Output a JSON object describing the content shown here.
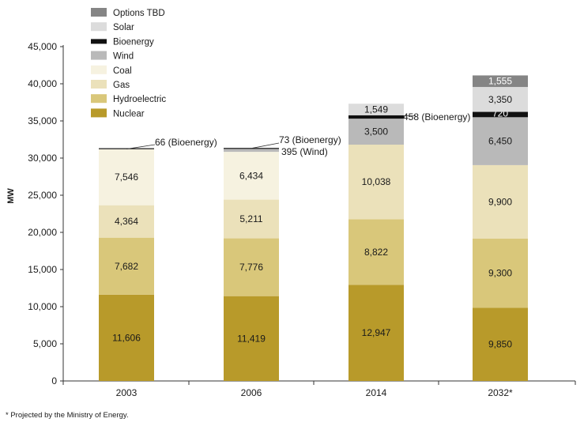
{
  "chart_data": {
    "type": "bar",
    "stacked": true,
    "categories": [
      "2003",
      "2006",
      "2014",
      "2032*"
    ],
    "ylabel": "MW",
    "ylim": [
      0,
      45000
    ],
    "yticks": [
      0,
      5000,
      10000,
      15000,
      20000,
      25000,
      30000,
      35000,
      40000,
      45000
    ],
    "ytick_labels": [
      "0",
      "5,000",
      "10,000",
      "15,000",
      "20,000",
      "25,000",
      "30,000",
      "35,000",
      "40,000",
      "45,000"
    ],
    "grid": false,
    "legend_position": "top-left",
    "series": [
      {
        "name": "Nuclear",
        "color": "#b89a2a",
        "values": [
          11606,
          11419,
          12947,
          9850
        ],
        "labels": [
          "11,606",
          "11,419",
          "12,947",
          "9,850"
        ]
      },
      {
        "name": "Hydroelectric",
        "color": "#d9c77a",
        "values": [
          7682,
          7776,
          8822,
          9300
        ],
        "labels": [
          "7,682",
          "7,776",
          "8,822",
          "9,300"
        ]
      },
      {
        "name": "Gas",
        "color": "#ebe1ba",
        "values": [
          4364,
          5211,
          10038,
          9900
        ],
        "labels": [
          "4,364",
          "5,211",
          "10,038",
          "9,900"
        ]
      },
      {
        "name": "Coal",
        "color": "#f6f2e0",
        "values": [
          7546,
          6434,
          0,
          0
        ],
        "labels": [
          "7,546",
          "6,434",
          "",
          ""
        ]
      },
      {
        "name": "Wind",
        "color": "#b9b9b9",
        "values": [
          0,
          395,
          3500,
          6450
        ],
        "labels": [
          "",
          "",
          "3,500",
          "6,450"
        ]
      },
      {
        "name": "Bioenergy",
        "color": "#111111",
        "values": [
          66,
          73,
          458,
          720
        ],
        "labels": [
          "",
          "",
          "",
          "720"
        ]
      },
      {
        "name": "Solar",
        "color": "#dcdcdc",
        "values": [
          0,
          0,
          1549,
          3350
        ],
        "labels": [
          "",
          "",
          "1,549",
          "3,350"
        ]
      },
      {
        "name": "Options TBD",
        "color": "#858585",
        "values": [
          0,
          0,
          0,
          1555
        ],
        "labels": [
          "",
          "",
          "",
          "1,555"
        ]
      }
    ],
    "legend_order": [
      "Options TBD",
      "Solar",
      "Bioenergy",
      "Wind",
      "Coal",
      "Gas",
      "Hydroelectric",
      "Nuclear"
    ],
    "annotations": [
      "66 (Bioenergy)",
      "73 (Bioenergy)",
      "395 (Wind)",
      "458 (Bioenergy)"
    ]
  },
  "footnote": "* Projected by the Ministry of Energy."
}
